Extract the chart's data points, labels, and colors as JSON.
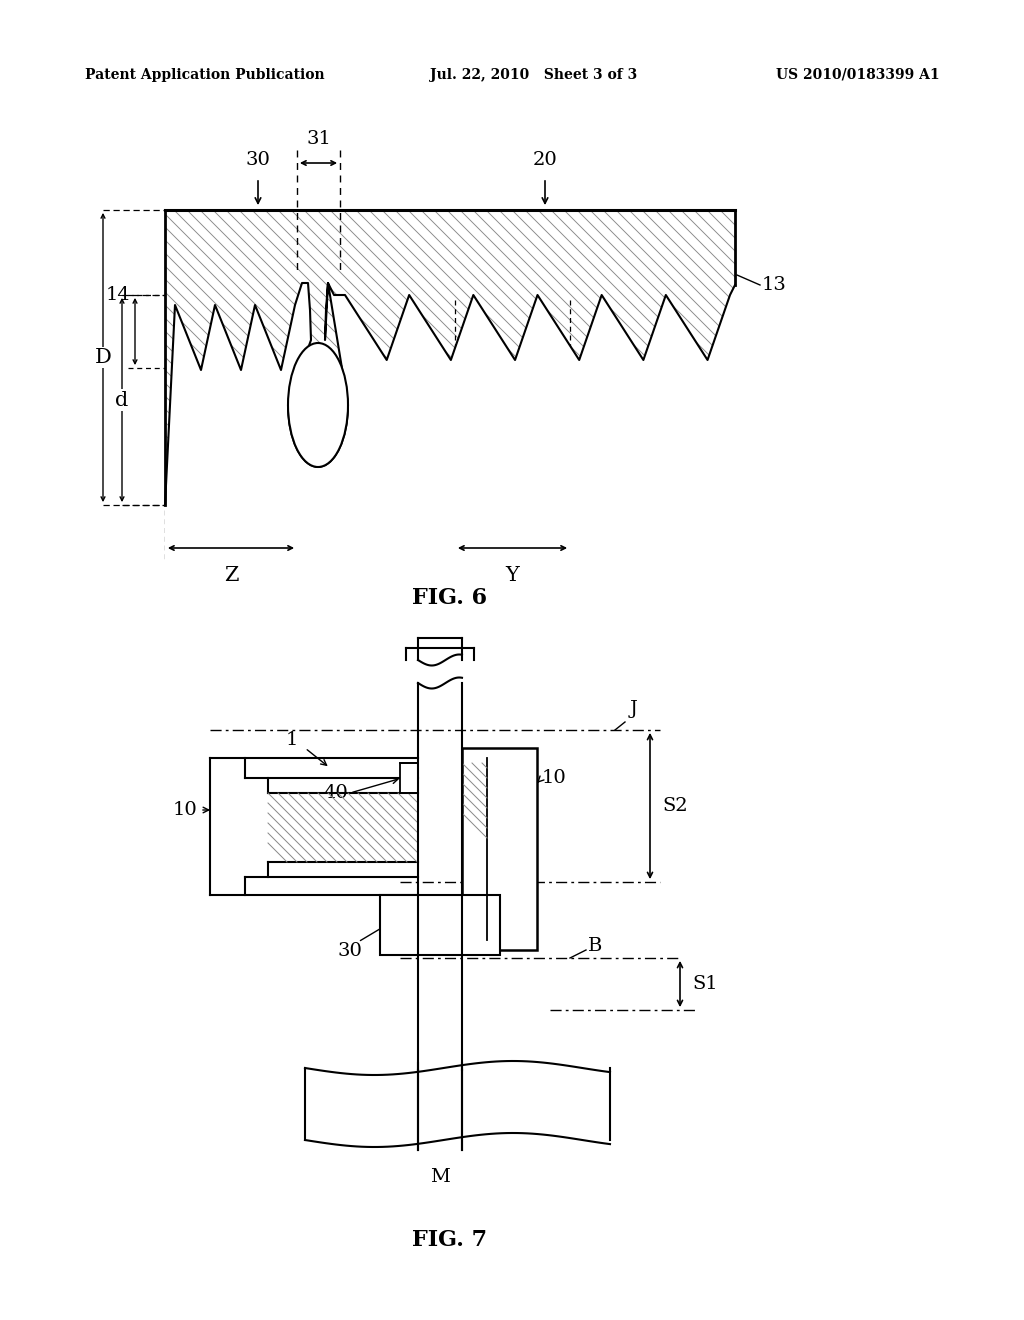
{
  "bg_color": "#ffffff",
  "header_left": "Patent Application Publication",
  "header_center": "Jul. 22, 2010   Sheet 3 of 3",
  "header_right": "US 2010/0183399 A1",
  "fig6_title": "FIG. 6",
  "fig7_title": "FIG. 7",
  "line_color": "#000000"
}
